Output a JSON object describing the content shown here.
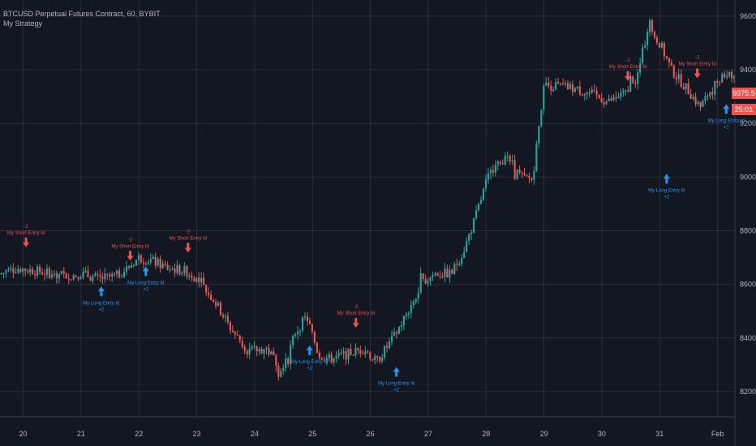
{
  "header": {
    "symbol": "BTCUSD Perpetual Futures Contract, 60, BYBIT",
    "study": "My Strategy"
  },
  "price_tags": {
    "last_price": "9375.5",
    "countdown": "25:01"
  },
  "chart_data": {
    "type": "candlestick",
    "y_axis": {
      "ticks": [
        8200,
        8400,
        8600,
        8800,
        9000,
        9200,
        9400,
        9600
      ],
      "labels": [
        "8200.0",
        "8400.0",
        "8600.0",
        "8800.0",
        "9000.0",
        "9200.0",
        "9400.0",
        "9600.0"
      ],
      "range": [
        8106,
        9660
      ]
    },
    "x_axis": {
      "range": [
        19.6,
        32.3
      ],
      "ticks": [
        {
          "x": 20,
          "label": "20"
        },
        {
          "x": 21,
          "label": "21"
        },
        {
          "x": 22,
          "label": "22"
        },
        {
          "x": 23,
          "label": "23"
        },
        {
          "x": 24,
          "label": "24"
        },
        {
          "x": 25,
          "label": "25"
        },
        {
          "x": 26,
          "label": "26"
        },
        {
          "x": 27,
          "label": "27"
        },
        {
          "x": 28,
          "label": "28"
        },
        {
          "x": 29,
          "label": "29"
        },
        {
          "x": 30,
          "label": "30"
        },
        {
          "x": 31,
          "label": "31"
        },
        {
          "x": 32,
          "label": "Feb"
        }
      ]
    },
    "colors": {
      "up": "#26a69a",
      "down": "#ef5350",
      "grid": "#2a2e39",
      "long": "#2196f3",
      "short": "#ef5350",
      "axis_text": "#b2b5be"
    },
    "price_path": [
      [
        19.6,
        8640
      ],
      [
        19.9,
        8660
      ],
      [
        20.2,
        8650
      ],
      [
        20.5,
        8640
      ],
      [
        20.8,
        8630
      ],
      [
        21.0,
        8640
      ],
      [
        21.3,
        8620
      ],
      [
        21.6,
        8630
      ],
      [
        21.8,
        8660
      ],
      [
        22.0,
        8700
      ],
      [
        22.2,
        8690
      ],
      [
        22.5,
        8660
      ],
      [
        22.8,
        8650
      ],
      [
        23.0,
        8620
      ],
      [
        23.3,
        8540
      ],
      [
        23.6,
        8430
      ],
      [
        23.9,
        8350
      ],
      [
        24.2,
        8360
      ],
      [
        24.5,
        8280
      ],
      [
        24.7,
        8420
      ],
      [
        24.9,
        8480
      ],
      [
        25.1,
        8340
      ],
      [
        25.3,
        8320
      ],
      [
        25.6,
        8340
      ],
      [
        25.9,
        8360
      ],
      [
        26.1,
        8310
      ],
      [
        26.4,
        8400
      ],
      [
        26.7,
        8520
      ],
      [
        26.9,
        8600
      ],
      [
        27.1,
        8640
      ],
      [
        27.4,
        8640
      ],
      [
        27.6,
        8720
      ],
      [
        27.8,
        8840
      ],
      [
        28.0,
        8980
      ],
      [
        28.2,
        9070
      ],
      [
        28.4,
        9060
      ],
      [
        28.6,
        9000
      ],
      [
        28.8,
        8990
      ],
      [
        29.0,
        9340
      ],
      [
        29.2,
        9340
      ],
      [
        29.5,
        9330
      ],
      [
        29.8,
        9310
      ],
      [
        30.1,
        9280
      ],
      [
        30.4,
        9310
      ],
      [
        30.6,
        9360
      ],
      [
        30.8,
        9560
      ],
      [
        31.0,
        9500
      ],
      [
        31.2,
        9400
      ],
      [
        31.5,
        9320
      ],
      [
        31.7,
        9260
      ],
      [
        31.9,
        9330
      ],
      [
        32.1,
        9390
      ],
      [
        32.3,
        9375
      ]
    ],
    "signals": [
      {
        "type": "short",
        "x": 20.05,
        "price": 8720,
        "label": "My Short Entry Id",
        "qty": "-2"
      },
      {
        "type": "long",
        "x": 21.35,
        "price": 8610,
        "label": "My Long Entry Id",
        "qty": "+2"
      },
      {
        "type": "short",
        "x": 21.85,
        "price": 8670,
        "label": "My Short Entry Id",
        "qty": "-2"
      },
      {
        "type": "long",
        "x": 22.12,
        "price": 8685,
        "label": "My Long Entry Id",
        "qty": "+2"
      },
      {
        "type": "short",
        "x": 22.85,
        "price": 8700,
        "label": "My Short Entry Id",
        "qty": "-2"
      },
      {
        "type": "long",
        "x": 24.95,
        "price": 8390,
        "label": "My Long Entry Id",
        "qty": "+2"
      },
      {
        "type": "short",
        "x": 25.75,
        "price": 8420,
        "label": "My Short Entry Id",
        "qty": "-2"
      },
      {
        "type": "long",
        "x": 26.45,
        "price": 8310,
        "label": "My Long Entry Id",
        "qty": "+2"
      },
      {
        "type": "short",
        "x": 30.45,
        "price": 9340,
        "label": "My Short Entry Id",
        "qty": "-2"
      },
      {
        "type": "long",
        "x": 31.12,
        "price": 9030,
        "label": "My Long Entry Id",
        "qty": "+2"
      },
      {
        "type": "short",
        "x": 31.65,
        "price": 9350,
        "label": "My Short Entry Id",
        "qty": "-2"
      },
      {
        "type": "long",
        "x": 32.15,
        "price": 9290,
        "label": "My Long Entry Id",
        "qty": "+2"
      }
    ]
  }
}
